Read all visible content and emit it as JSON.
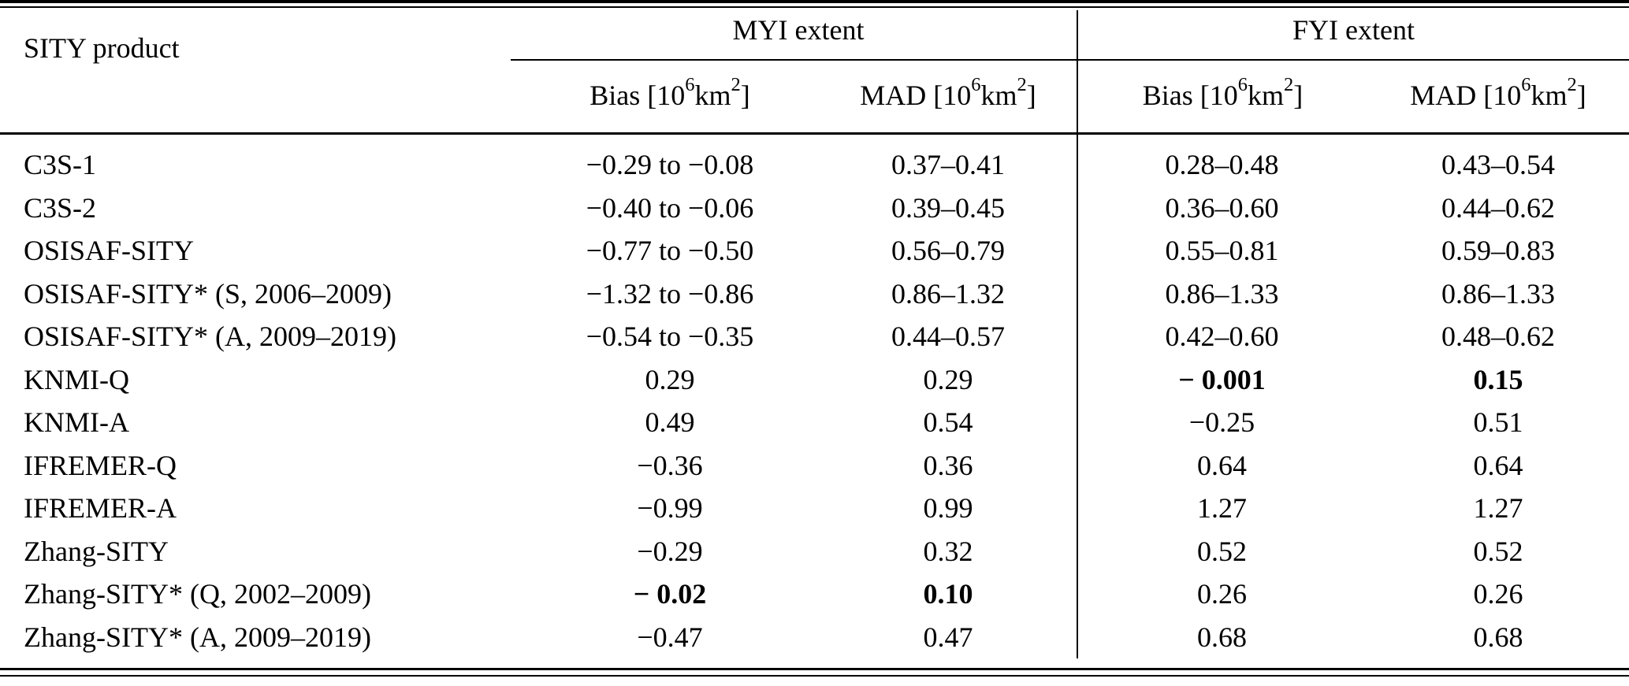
{
  "style": {
    "background": "#ffffff",
    "text_color": "#000000",
    "rule_color": "#000000"
  },
  "table": {
    "corner_header": "SITY product",
    "column_groups": [
      {
        "label": "MYI extent",
        "subcolumns": [
          {
            "label_html": "Bias [10<sup>6</sup> km<sup>2</sup>]"
          },
          {
            "label_html": "MAD [10<sup>6</sup> km<sup>2</sup>]"
          }
        ]
      },
      {
        "label": "FYI extent",
        "subcolumns": [
          {
            "label_html": "Bias [10<sup>6</sup> km<sup>2</sup>]"
          },
          {
            "label_html": "MAD [10<sup>6</sup> km<sup>2</sup>]"
          }
        ]
      }
    ],
    "rows": [
      {
        "product": "C3S-1",
        "myi_bias": "−0.29 to −0.08",
        "myi_mad": "0.37–0.41",
        "fyi_bias": "0.28–0.48",
        "fyi_mad": "0.43–0.54",
        "emphasis": []
      },
      {
        "product": "C3S-2",
        "myi_bias": "−0.40 to −0.06",
        "myi_mad": "0.39–0.45",
        "fyi_bias": "0.36–0.60",
        "fyi_mad": "0.44–0.62",
        "emphasis": []
      },
      {
        "product": "OSISAF-SITY",
        "myi_bias": "−0.77 to −0.50",
        "myi_mad": "0.56–0.79",
        "fyi_bias": "0.55–0.81",
        "fyi_mad": "0.59–0.83",
        "emphasis": []
      },
      {
        "product": "OSISAF-SITY* (S, 2006–2009)",
        "myi_bias": "−1.32 to −0.86",
        "myi_mad": "0.86–1.32",
        "fyi_bias": "0.86–1.33",
        "fyi_mad": "0.86–1.33",
        "emphasis": []
      },
      {
        "product": "OSISAF-SITY* (A, 2009–2019)",
        "myi_bias": "−0.54 to −0.35",
        "myi_mad": "0.44–0.57",
        "fyi_bias": "0.42–0.60",
        "fyi_mad": "0.48–0.62",
        "emphasis": []
      },
      {
        "product": "KNMI-Q",
        "myi_bias": "0.29",
        "myi_mad": "0.29",
        "fyi_bias": "− 0.001",
        "fyi_mad": "0.15",
        "emphasis": [
          "fyi_bias",
          "fyi_mad"
        ]
      },
      {
        "product": "KNMI-A",
        "myi_bias": "0.49",
        "myi_mad": "0.54",
        "fyi_bias": "−0.25",
        "fyi_mad": "0.51",
        "emphasis": []
      },
      {
        "product": "IFREMER-Q",
        "myi_bias": "−0.36",
        "myi_mad": "0.36",
        "fyi_bias": "0.64",
        "fyi_mad": "0.64",
        "emphasis": []
      },
      {
        "product": "IFREMER-A",
        "myi_bias": "−0.99",
        "myi_mad": "0.99",
        "fyi_bias": "1.27",
        "fyi_mad": "1.27",
        "emphasis": []
      },
      {
        "product": "Zhang-SITY",
        "myi_bias": "−0.29",
        "myi_mad": "0.32",
        "fyi_bias": "0.52",
        "fyi_mad": "0.52",
        "emphasis": []
      },
      {
        "product": "Zhang-SITY* (Q, 2002–2009)",
        "myi_bias": "− 0.02",
        "myi_mad": "0.10",
        "fyi_bias": "0.26",
        "fyi_mad": "0.26",
        "emphasis": [
          "myi_bias",
          "myi_mad"
        ]
      },
      {
        "product": "Zhang-SITY* (A, 2009–2019)",
        "myi_bias": "−0.47",
        "myi_mad": "0.47",
        "fyi_bias": "0.68",
        "fyi_mad": "0.68",
        "emphasis": []
      }
    ]
  }
}
